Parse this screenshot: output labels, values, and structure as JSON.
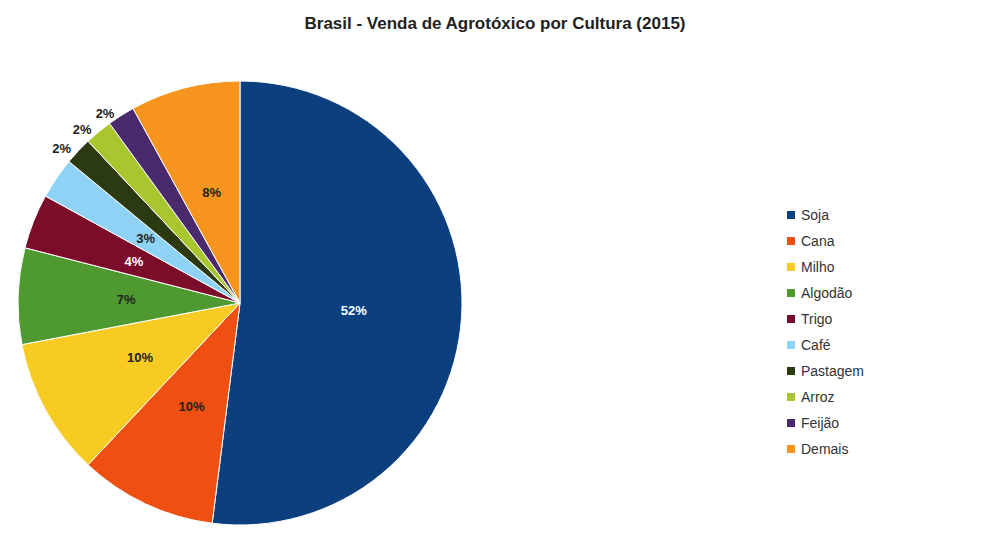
{
  "chart_data": {
    "type": "pie",
    "title": "Brasil - Venda de Agrotóxico por Cultura (2015)",
    "categories": [
      "Soja",
      "Cana",
      "Milho",
      "Algodão",
      "Trigo",
      "Café",
      "Pastagem",
      "Arroz",
      "Feijão",
      "Demais"
    ],
    "values": [
      52,
      10,
      10,
      7,
      4,
      3,
      2,
      2,
      2,
      8
    ],
    "value_labels": [
      "52%",
      "10%",
      "10%",
      "7%",
      "4%",
      "3%",
      "2%",
      "2%",
      "2%",
      "8%"
    ],
    "colors": [
      "#0b3f7e",
      "#f04f12",
      "#f8cb22",
      "#4f9a30",
      "#7b0d2b",
      "#8ed2f6",
      "#2c3a12",
      "#a8c72e",
      "#4a2a6c",
      "#f7941d"
    ],
    "data_labels": true,
    "legend": "right"
  }
}
